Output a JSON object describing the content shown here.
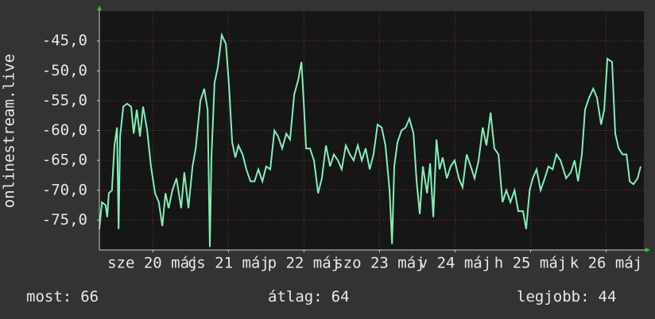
{
  "chart_data": {
    "type": "line",
    "y_label": "onlinestream.live",
    "x": [
      0,
      0.8,
      2.0,
      2.5,
      3.0,
      4.0,
      4.8,
      5.6,
      6.1,
      6.6,
      7.6,
      8.8,
      10.1,
      10.9,
      11.9,
      12.9,
      13.9,
      15.2,
      16.4,
      17.7,
      18.9,
      20.0,
      21.0,
      22.0,
      23.2,
      24.5,
      26.0,
      27.0,
      28.3,
      29.6,
      30.6,
      32.1,
      33.3,
      34.4,
      35.1,
      35.6,
      36.6,
      37.6,
      38.9,
      40.2,
      41.2,
      42.2,
      43.2,
      44.2,
      45.5,
      46.7,
      48.0,
      49.3,
      50.5,
      51.8,
      53.0,
      54.3,
      55.6,
      56.8,
      58.1,
      59.4,
      60.6,
      61.9,
      63.2,
      64.2,
      64.9,
      65.7,
      66.9,
      68.2,
      69.5,
      70.7,
      72.0,
      73.3,
      74.5,
      75.8,
      77.0,
      78.3,
      79.6,
      80.8,
      82.1,
      83.4,
      84.6,
      85.9,
      87.1,
      88.4,
      89.7,
      90.9,
      92.2,
      93.0,
      93.7,
      94.7,
      96.0,
      97.3,
      98.5,
      99.8,
      100.8,
      101.8,
      102.8,
      104.1,
      105.1,
      106.1,
      107.1,
      108.1,
      109.1,
      110.4,
      111.6,
      112.9,
      114.2,
      115.4,
      116.7,
      118.0,
      119.2,
      120.5,
      121.8,
      123.0,
      124.3,
      125.5,
      126.8,
      128.1,
      129.3,
      130.6,
      131.9,
      133.1,
      134.6,
      135.6,
      136.7,
      137.7,
      138.9,
      140.2,
      141.5,
      142.7,
      144.0,
      145.2,
      146.5,
      148.3,
      149.8,
      151.0,
      152.1,
      153.3,
      154.3,
      155.6,
      156.9,
      158.1,
      159.4,
      160.4,
      161.4,
      162.9,
      163.9,
      165.0,
      166.2,
      167.5,
      168.5,
      169.7,
      171.0,
      172.0
    ],
    "series": [
      {
        "color": "#80f0b8",
        "values": [
          -76.5,
          -72,
          -72.5,
          -74.5,
          -70.5,
          -70,
          -62.5,
          -59.5,
          -76.5,
          -61,
          -56,
          -55.5,
          -56,
          -60.5,
          -56.5,
          -61,
          -56,
          -60,
          -66,
          -70.5,
          -72,
          -76,
          -70.5,
          -73,
          -70,
          -68,
          -73,
          -67,
          -73,
          -66,
          -63,
          -55,
          -53,
          -56.5,
          -79.5,
          -64.5,
          -52,
          -49.5,
          -44,
          -45.5,
          -52.5,
          -62,
          -64.5,
          -62.5,
          -64,
          -66.5,
          -68.5,
          -68.5,
          -66.5,
          -68.5,
          -66,
          -66.5,
          -60,
          -61,
          -63,
          -60.5,
          -61.5,
          -54,
          -51.5,
          -48.5,
          -55,
          -63,
          -63,
          -65,
          -70.5,
          -68,
          -62.5,
          -66,
          -64,
          -65,
          -66.5,
          -62.5,
          -64,
          -65,
          -62.5,
          -65,
          -63,
          -66.5,
          -64,
          -59,
          -59.5,
          -62.5,
          -70,
          -79,
          -66,
          -62,
          -60,
          -59.5,
          -58,
          -60.5,
          -68.5,
          -74,
          -66,
          -70.5,
          -65.5,
          -74.5,
          -61.5,
          -66.5,
          -64.5,
          -68,
          -66,
          -65,
          -68,
          -69.5,
          -64,
          -66,
          -68,
          -65,
          -59.5,
          -62.5,
          -57,
          -63,
          -64,
          -72,
          -70,
          -72,
          -70,
          -73.5,
          -73.5,
          -76.5,
          -70,
          -68,
          -66.5,
          -70,
          -68,
          -66,
          -66.5,
          -64,
          -65,
          -68,
          -67,
          -65,
          -68.5,
          -64,
          -56.5,
          -54.5,
          -53,
          -54.5,
          -59,
          -56.5,
          -48,
          -48.5,
          -60.5,
          -63,
          -64,
          -64,
          -68.5,
          -69,
          -68,
          -66
        ]
      }
    ],
    "xlim": [
      0,
      173
    ],
    "xticks": [
      {
        "value": 17,
        "label": "sze 20 máj"
      },
      {
        "value": 41,
        "label": "cs 21 máj"
      },
      {
        "value": 65,
        "label": "p 22 máj"
      },
      {
        "value": 89,
        "label": "szo 23 máj"
      },
      {
        "value": 113,
        "label": "v 24 máj"
      },
      {
        "value": 137,
        "label": "h 25 máj"
      },
      {
        "value": 161,
        "label": "k 26 máj"
      }
    ],
    "ylim": [
      -80,
      -40
    ],
    "yticks": [
      {
        "value": -45,
        "label": "-45,0"
      },
      {
        "value": -50,
        "label": "-50,0"
      },
      {
        "value": -55,
        "label": "-55,0"
      },
      {
        "value": -60,
        "label": "-60,0"
      },
      {
        "value": -65,
        "label": "-65,0"
      },
      {
        "value": -70,
        "label": "-70,0"
      },
      {
        "value": -75,
        "label": "-75,0"
      }
    ],
    "grid": true,
    "stats": [
      {
        "label": "most:",
        "value": 66
      },
      {
        "label": "átlag:",
        "value": 64
      },
      {
        "label": "legjobb:",
        "value": 44
      }
    ]
  }
}
